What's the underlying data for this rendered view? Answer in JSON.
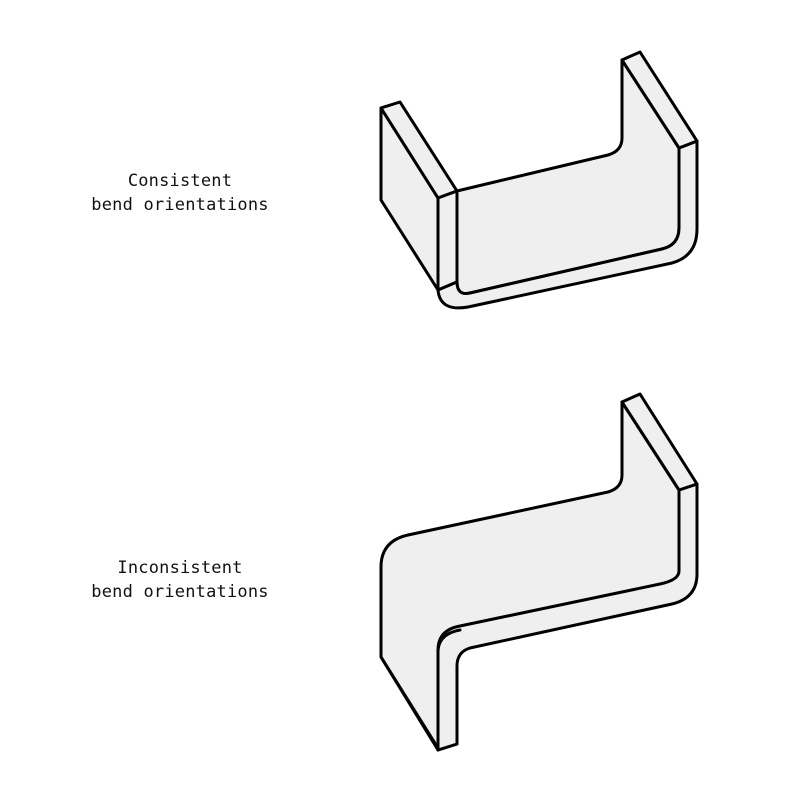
{
  "diagrams": [
    {
      "label_lines": [
        "Consistent",
        "bend orientations"
      ]
    },
    {
      "label_lines": [
        "Inconsistent",
        "bend orientations"
      ]
    }
  ],
  "colors": {
    "fill": "#efefef",
    "stroke": "#000000",
    "background": "#ffffff"
  }
}
